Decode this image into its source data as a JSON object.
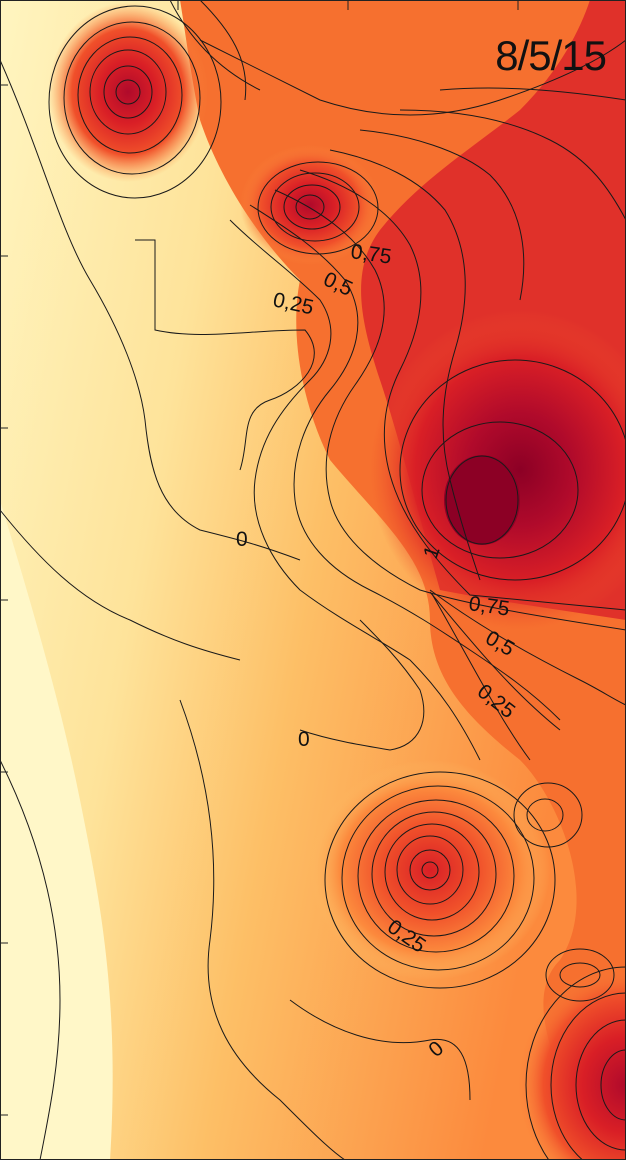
{
  "date_label": "8/5/15",
  "chart_data": {
    "type": "contour",
    "title": "8/5/15",
    "contour_levels": [
      0,
      0.25,
      0.5,
      0.75,
      1
    ],
    "contour_labels": [
      {
        "text": "0,75",
        "value": 0.75
      },
      {
        "text": "0,5",
        "value": 0.5
      },
      {
        "text": "0,25",
        "value": 0.25
      },
      {
        "text": "0",
        "value": 0
      },
      {
        "text": "1",
        "value": 1
      },
      {
        "text": "0,75",
        "value": 0.75
      },
      {
        "text": "0,5",
        "value": 0.5
      },
      {
        "text": "0,25",
        "value": 0.25
      },
      {
        "text": "0",
        "value": 0
      },
      {
        "text": "0,25",
        "value": 0.25
      },
      {
        "text": "0",
        "value": 0
      }
    ],
    "colormap": [
      "#fff5c0",
      "#fee39a",
      "#fdbf66",
      "#fc8a3d",
      "#f0502a",
      "#d91f26",
      "#b00a2b",
      "#8c0025"
    ],
    "axis_ticks_visible": true,
    "tick_labels_visible": false
  }
}
